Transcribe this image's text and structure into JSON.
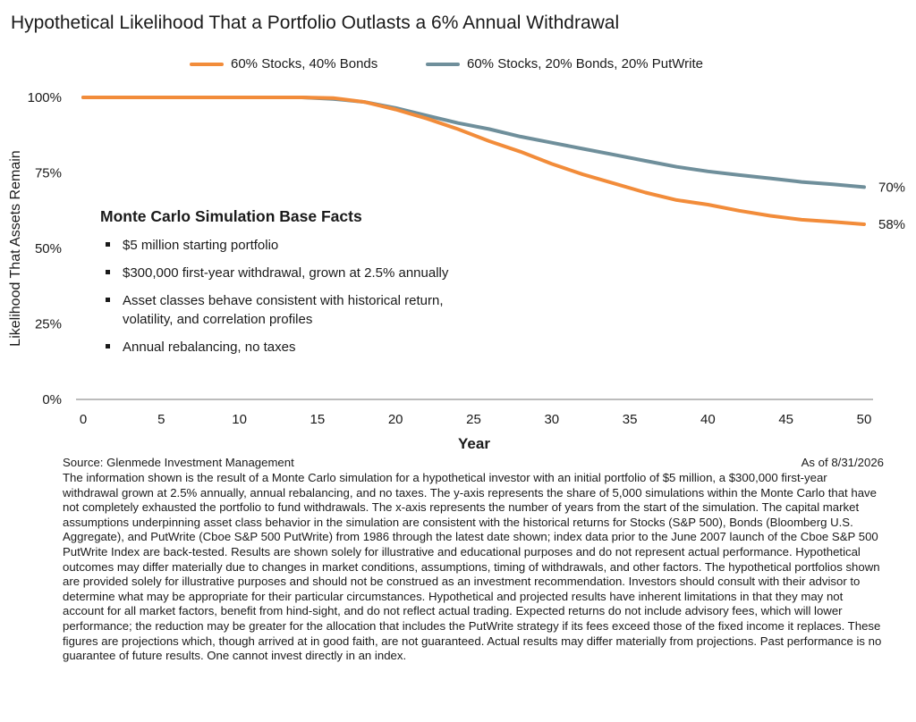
{
  "title": "Hypothetical Likelihood That a Portfolio Outlasts a 6% Annual Withdrawal",
  "chart_data": {
    "type": "line",
    "title": "Hypothetical Likelihood That a Portfolio Outlasts a 6% Annual Withdrawal",
    "xlabel": "Year",
    "ylabel": "Likelihood That Assets Remain",
    "xlim": [
      0,
      50
    ],
    "ylim": [
      0,
      100
    ],
    "x_ticks": [
      0,
      5,
      10,
      15,
      20,
      25,
      30,
      35,
      40,
      45,
      50
    ],
    "x_tick_labels": [
      "0",
      "5",
      "10",
      "15",
      "20",
      "25",
      "30",
      "35",
      "40",
      "45",
      "50"
    ],
    "y_ticks": [
      0,
      25,
      50,
      75,
      100
    ],
    "y_tick_labels": [
      "0%",
      "25%",
      "50%",
      "75%",
      "100%"
    ],
    "grid": false,
    "legend_position": "top",
    "x": [
      0,
      5,
      10,
      14,
      16,
      18,
      20,
      22,
      24,
      26,
      28,
      30,
      32,
      34,
      36,
      38,
      40,
      42,
      44,
      46,
      48,
      50
    ],
    "series": [
      {
        "name": "60% Stocks, 40% Bonds",
        "color": "#F28C3A",
        "values": [
          100,
          100,
          100,
          100,
          99.8,
          98.5,
          96,
          93,
          89.5,
          85.5,
          82,
          78,
          74.5,
          71.5,
          68.5,
          66,
          64.5,
          62.5,
          60.8,
          59.5,
          58.8,
          58
        ],
        "end_label": "58%"
      },
      {
        "name": "60% Stocks, 20% Bonds, 20% PutWrite",
        "color": "#6F8F9B",
        "values": [
          100,
          100,
          100,
          100,
          99.5,
          98.5,
          96.5,
          94,
          91.5,
          89.5,
          87,
          85,
          83,
          81,
          79,
          77,
          75.5,
          74.3,
          73.2,
          72,
          71.2,
          70.3
        ],
        "end_label": "70%"
      }
    ]
  },
  "info_box": {
    "title": "Monte Carlo Simulation Base Facts",
    "bullets": [
      [
        "$5 million starting portfolio"
      ],
      [
        "$300,000 first-year withdrawal, grown at 2.5% annually"
      ],
      [
        "Asset classes behave consistent with historical return,",
        "volatility, and correlation profiles"
      ],
      [
        "Annual rebalancing, no taxes"
      ]
    ]
  },
  "footer": {
    "source": "Source: Glenmede Investment Management",
    "as_of": "As of 8/31/2026",
    "disclaimer": "The information shown is the result of a Monte Carlo simulation for a hypothetical investor with an initial portfolio of $5 million, a $300,000 first-year withdrawal grown at 2.5% annually, annual rebalancing, and no taxes. The y-axis represents the share of 5,000 simulations within the Monte Carlo that have not completely exhausted the portfolio to fund withdrawals. The x-axis represents the number of years from the start of the simulation. The capital market assumptions underpinning asset class behavior in the simulation are consistent with the historical returns for Stocks (S&P 500), Bonds (Bloomberg U.S. Aggregate), and PutWrite (Cboe S&P 500 PutWrite) from 1986 through the latest date shown; index data prior to the June 2007 launch of the Cboe S&P 500 PutWrite Index are back-tested. Results are shown solely for illustrative and educational purposes and do not represent actual performance. Hypothetical outcomes may differ materially due to changes in market conditions, assumptions, timing of withdrawals, and other factors. The hypothetical portfolios shown are provided solely for illustrative purposes and should not be construed as an investment recommendation. Investors should consult with their advisor to determine what may be appropriate for their particular circumstances. Hypothetical and projected results have inherent limitations in that they may not account for all market factors, benefit from hind-sight, and do not reflect actual trading. Expected returns do not include advisory fees, which will lower performance; the reduction may be greater for the allocation that includes the PutWrite strategy if its fees exceed those of the fixed income it replaces. These figures are projections which, though arrived at in good faith, are not guaranteed. Actual results may differ materially from projections. Past performance is no guarantee of future results. One cannot invest directly in an index."
  }
}
